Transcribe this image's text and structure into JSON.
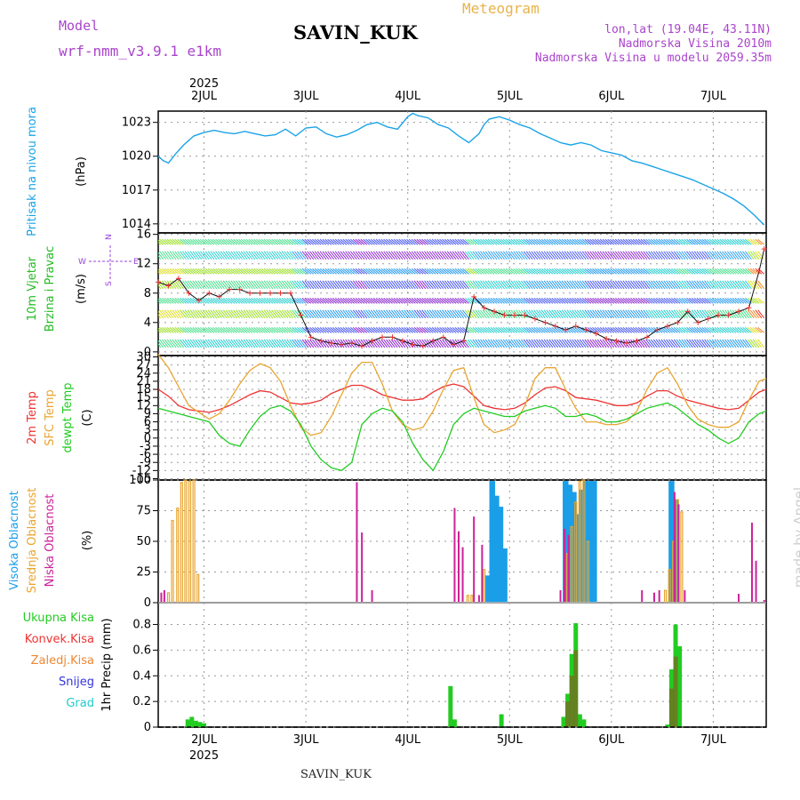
{
  "header": {
    "model_label": "Model",
    "model_name": "wrf-nmm_v3.9.1  e1km",
    "station": "SAVIN_KUK",
    "meteogram": "Meteogram",
    "coords": "lon,lat (19.04E, 43.11N)",
    "altitude": "Nadmorska Visina 2010m",
    "model_altitude": "Nadmorska Visina u modelu 2059.35m"
  },
  "footer": {
    "station": "SAVIN_KUK"
  },
  "credit": "made by Angel",
  "colors": {
    "pressure": "#1aa3e8",
    "t2m": "#ee3333",
    "tsfc": "#e8a530",
    "dewpt": "#22cc22",
    "high_cloud": "#1a9ee8",
    "mid_cloud": "#e8a530",
    "low_cloud": "#cc2299",
    "total_precip": "#22cc22",
    "conv_precip": "#ee3333",
    "freezing": "#ee8833",
    "snow": "#3333dd",
    "hail": "#22cccc",
    "compass": "#9944dd"
  },
  "chart_data": [
    {
      "type": "line",
      "panel": "pressure",
      "ylabel_lines": [
        "Pritisak na nivou mora",
        "(hPa)"
      ],
      "ylim": [
        1013.2,
        1024.0
      ],
      "yticks": [
        1014,
        1017,
        1020,
        1023
      ],
      "x_axis": {
        "year_label": "2025",
        "tick_labels": [
          "2JUL",
          "3JUL",
          "4JUL",
          "5JUL",
          "6JUL",
          "7JUL"
        ],
        "range_days": [
          1.55,
          7.52
        ]
      },
      "series": [
        {
          "x": [
            1.55,
            1.6,
            1.65,
            1.72,
            1.8,
            1.9,
            2.0,
            2.1,
            2.2,
            2.3,
            2.4,
            2.5,
            2.6,
            2.7,
            2.8,
            2.9,
            3.0,
            3.1,
            3.2,
            3.3,
            3.4,
            3.5,
            3.6,
            3.7,
            3.8,
            3.9,
            4.0,
            4.05,
            4.1,
            4.2,
            4.3,
            4.4,
            4.5,
            4.6,
            4.7,
            4.75,
            4.8,
            4.9,
            5.0,
            5.1,
            5.2,
            5.3,
            5.4,
            5.5,
            5.6,
            5.7,
            5.8,
            5.9,
            6.0,
            6.1,
            6.2,
            6.3,
            6.4,
            6.5,
            6.6,
            6.7,
            6.8,
            6.9,
            7.0,
            7.1,
            7.2,
            7.3,
            7.4,
            7.5
          ],
          "y": [
            1020.0,
            1019.6,
            1019.4,
            1020.2,
            1021.0,
            1021.8,
            1022.1,
            1022.3,
            1022.1,
            1022.0,
            1022.2,
            1022.0,
            1021.8,
            1021.9,
            1022.4,
            1021.8,
            1022.5,
            1022.6,
            1022.0,
            1021.7,
            1021.9,
            1022.3,
            1022.8,
            1023.0,
            1022.6,
            1022.4,
            1023.5,
            1023.8,
            1023.6,
            1023.4,
            1022.8,
            1022.5,
            1021.8,
            1021.2,
            1022.0,
            1022.8,
            1023.3,
            1023.5,
            1023.2,
            1022.8,
            1022.5,
            1022.0,
            1021.6,
            1021.2,
            1021.0,
            1021.2,
            1021.0,
            1020.5,
            1020.3,
            1020.1,
            1019.6,
            1019.4,
            1019.1,
            1018.8,
            1018.5,
            1018.2,
            1017.9,
            1017.5,
            1017.1,
            1016.7,
            1016.2,
            1015.6,
            1014.8,
            1013.9
          ]
        }
      ]
    },
    {
      "type": "line",
      "panel": "wind",
      "ylabel_lines": [
        "10m Vjetar",
        "Brzina i Pravac",
        "(m/s)"
      ],
      "compass_labels": [
        "W",
        "N",
        "E",
        "S"
      ],
      "ylim": [
        -0.5,
        16.2
      ],
      "yticks": [
        0,
        4,
        8,
        12,
        16
      ],
      "series": [
        {
          "name": "wind speed",
          "x": [
            1.55,
            1.65,
            1.75,
            1.85,
            1.95,
            2.05,
            2.15,
            2.25,
            2.35,
            2.45,
            2.55,
            2.65,
            2.75,
            2.85,
            2.95,
            3.05,
            3.15,
            3.25,
            3.35,
            3.45,
            3.55,
            3.65,
            3.75,
            3.85,
            3.95,
            4.05,
            4.15,
            4.25,
            4.35,
            4.45,
            4.55,
            4.65,
            4.75,
            4.85,
            4.95,
            5.05,
            5.15,
            5.25,
            5.35,
            5.45,
            5.55,
            5.65,
            5.75,
            5.85,
            5.95,
            6.05,
            6.15,
            6.25,
            6.35,
            6.45,
            6.55,
            6.65,
            6.75,
            6.85,
            6.95,
            7.05,
            7.15,
            7.25,
            7.35,
            7.45,
            7.5
          ],
          "y": [
            9.5,
            9.0,
            10.0,
            8.0,
            7.0,
            8.0,
            7.5,
            8.5,
            8.5,
            8.0,
            8.0,
            8.0,
            8.0,
            8.0,
            5.0,
            2.0,
            1.5,
            1.2,
            1.0,
            1.2,
            0.8,
            1.5,
            2.0,
            2.0,
            1.5,
            1.0,
            0.8,
            1.5,
            2.0,
            1.0,
            1.5,
            7.5,
            6.0,
            5.5,
            5.0,
            5.0,
            5.0,
            4.5,
            4.0,
            3.5,
            3.0,
            3.5,
            3.0,
            2.5,
            1.8,
            1.5,
            1.2,
            1.5,
            2.0,
            3.0,
            3.5,
            4.0,
            5.5,
            4.0,
            4.5,
            5.0,
            5.0,
            5.5,
            6.0,
            11.0,
            14.0
          ]
        }
      ]
    },
    {
      "type": "line",
      "panel": "temperature",
      "ylabel_lines": [
        "2m Temp",
        "SFC Temp",
        "dewpt Temp",
        "(C)"
      ],
      "ylim": [
        -15.5,
        30.5
      ],
      "yticks": [
        -15,
        -12,
        -9,
        -6,
        -3,
        0,
        3,
        6,
        9,
        12,
        15,
        18,
        21,
        24,
        27,
        30
      ],
      "x": [
        1.55,
        1.65,
        1.75,
        1.85,
        1.95,
        2.05,
        2.15,
        2.25,
        2.35,
        2.45,
        2.55,
        2.65,
        2.75,
        2.85,
        2.95,
        3.05,
        3.15,
        3.25,
        3.35,
        3.45,
        3.55,
        3.65,
        3.75,
        3.85,
        3.95,
        4.05,
        4.15,
        4.25,
        4.35,
        4.45,
        4.55,
        4.65,
        4.75,
        4.85,
        4.95,
        5.05,
        5.15,
        5.25,
        5.35,
        5.45,
        5.55,
        5.65,
        5.75,
        5.85,
        5.95,
        6.05,
        6.15,
        6.25,
        6.35,
        6.45,
        6.55,
        6.65,
        6.75,
        6.85,
        6.95,
        7.05,
        7.15,
        7.25,
        7.35,
        7.45,
        7.52
      ],
      "series": [
        {
          "name": "2m Temp",
          "y": [
            18,
            15.5,
            12,
            10.5,
            10,
            9.5,
            10.5,
            12,
            14,
            16,
            17.5,
            17,
            15,
            13,
            12.5,
            13,
            14,
            16.5,
            18,
            19.5,
            19.5,
            18,
            16,
            15,
            14,
            14,
            14.5,
            17,
            19,
            20,
            19,
            15.5,
            12,
            11,
            10.5,
            11,
            13,
            16,
            18.5,
            19,
            17.5,
            15,
            14.5,
            14,
            13,
            12,
            12,
            13,
            15.5,
            17.5,
            17.5,
            15.5,
            14,
            13,
            12,
            11,
            10.5,
            11,
            14,
            17,
            18
          ]
        },
        {
          "name": "SFC Temp",
          "y": [
            31,
            26,
            19,
            12,
            9.5,
            7,
            9,
            14,
            20,
            25,
            27.5,
            26,
            21,
            12,
            4,
            1,
            2,
            8,
            16,
            24,
            28,
            28,
            20,
            10,
            5,
            3,
            4,
            10,
            18,
            25,
            26,
            15,
            5,
            2,
            3,
            5,
            12,
            22,
            26,
            26,
            18,
            11,
            6,
            6,
            5,
            5,
            6,
            10,
            18,
            24,
            26,
            20,
            12,
            7,
            5,
            4,
            4,
            6,
            14,
            21,
            22
          ]
        },
        {
          "name": "dewpt Temp",
          "y": [
            11,
            10,
            9,
            8,
            7,
            6,
            1,
            -2,
            -3,
            3,
            8,
            11,
            12,
            10,
            5,
            -3,
            -8,
            -11,
            -12,
            -9,
            5,
            9,
            11,
            10,
            6,
            -2,
            -8,
            -12,
            -5,
            5,
            9,
            11,
            10,
            9,
            8,
            8,
            10,
            11,
            12,
            11,
            8,
            8,
            9,
            8,
            6,
            6,
            7,
            9,
            11,
            12,
            13,
            11,
            8,
            5,
            3,
            0,
            -2,
            0,
            6,
            9,
            10
          ]
        }
      ]
    },
    {
      "type": "bar",
      "panel": "cloud",
      "ylabel_lines": [
        "Visoka Oblacnost",
        "Srednja Oblacnost",
        "Niska Oblacnost",
        "(%)"
      ],
      "ylim": [
        0,
        100
      ],
      "yticks": [
        0,
        25,
        50,
        75,
        100
      ],
      "series": [
        {
          "name": "Visoka Oblacnost",
          "points": [
            [
              4.83,
              99
            ],
            [
              4.87,
              87
            ],
            [
              4.91,
              78
            ],
            [
              4.95,
              44
            ],
            [
              4.79,
              22
            ],
            [
              5.55,
              99
            ],
            [
              5.59,
              96
            ],
            [
              5.63,
              90
            ],
            [
              5.67,
              72
            ],
            [
              5.71,
              92
            ],
            [
              5.75,
              99
            ],
            [
              5.79,
              99
            ],
            [
              5.83,
              99
            ],
            [
              6.59,
              99
            ],
            [
              6.63,
              84
            ]
          ]
        },
        {
          "name": "Srednja Oblacnost",
          "points": [
            [
              1.65,
              8
            ],
            [
              1.69,
              67
            ],
            [
              1.74,
              77
            ],
            [
              1.78,
              98
            ],
            [
              1.82,
              100
            ],
            [
              1.86,
              99
            ],
            [
              1.9,
              100
            ],
            [
              1.94,
              23
            ],
            [
              4.59,
              6
            ],
            [
              4.63,
              6
            ],
            [
              4.75,
              27
            ],
            [
              5.57,
              40
            ],
            [
              5.61,
              62
            ],
            [
              5.65,
              82
            ],
            [
              5.69,
              99
            ],
            [
              5.73,
              100
            ],
            [
              5.77,
              50
            ],
            [
              6.53,
              10
            ],
            [
              6.57,
              27
            ],
            [
              6.61,
              50
            ],
            [
              6.65,
              84
            ],
            [
              6.69,
              74
            ]
          ]
        },
        {
          "name": "Niska Oblacnost",
          "points": [
            [
              1.58,
              8
            ],
            [
              1.61,
              10
            ],
            [
              3.5,
              98
            ],
            [
              3.55,
              57
            ],
            [
              3.65,
              10
            ],
            [
              4.46,
              77
            ],
            [
              4.5,
              58
            ],
            [
              4.54,
              45
            ],
            [
              4.65,
              70
            ],
            [
              4.7,
              6
            ],
            [
              4.73,
              47
            ],
            [
              5.5,
              10
            ],
            [
              5.54,
              60
            ],
            [
              5.58,
              55
            ],
            [
              6.3,
              10
            ],
            [
              6.42,
              8
            ],
            [
              6.47,
              10
            ],
            [
              6.62,
              90
            ],
            [
              6.66,
              80
            ],
            [
              6.72,
              10
            ],
            [
              7.25,
              7
            ],
            [
              7.38,
              65
            ],
            [
              7.42,
              34
            ],
            [
              7.5,
              2
            ]
          ]
        }
      ]
    },
    {
      "type": "bar",
      "panel": "precip",
      "ylabel_lines": [
        "1hr Precip (mm)"
      ],
      "legend": [
        "Ukupna Kisa",
        "Konvek.Kisa",
        "Zaledj.Kisa",
        "Snijeg",
        "Grad"
      ],
      "ylim": [
        0,
        0.97
      ],
      "yticks": [
        0,
        0.2,
        0.4,
        0.6,
        0.8
      ],
      "series": [
        {
          "name": "Ukupna Kisa",
          "points": [
            [
              1.84,
              0.06
            ],
            [
              1.88,
              0.08
            ],
            [
              1.92,
              0.05
            ],
            [
              1.96,
              0.04
            ],
            [
              2.0,
              0.03
            ],
            [
              4.42,
              0.32
            ],
            [
              4.46,
              0.06
            ],
            [
              4.92,
              0.1
            ],
            [
              5.53,
              0.08
            ],
            [
              5.57,
              0.26
            ],
            [
              5.61,
              0.57
            ],
            [
              5.65,
              0.81
            ],
            [
              5.69,
              0.1
            ],
            [
              5.73,
              0.06
            ],
            [
              6.55,
              0.02
            ],
            [
              6.59,
              0.45
            ],
            [
              6.63,
              0.8
            ],
            [
              6.67,
              0.63
            ]
          ]
        },
        {
          "name": "Konvek.Kisa",
          "points": [
            [
              5.57,
              0.2
            ],
            [
              5.61,
              0.4
            ],
            [
              5.65,
              0.6
            ],
            [
              6.59,
              0.3
            ],
            [
              6.63,
              0.55
            ]
          ]
        }
      ]
    }
  ]
}
